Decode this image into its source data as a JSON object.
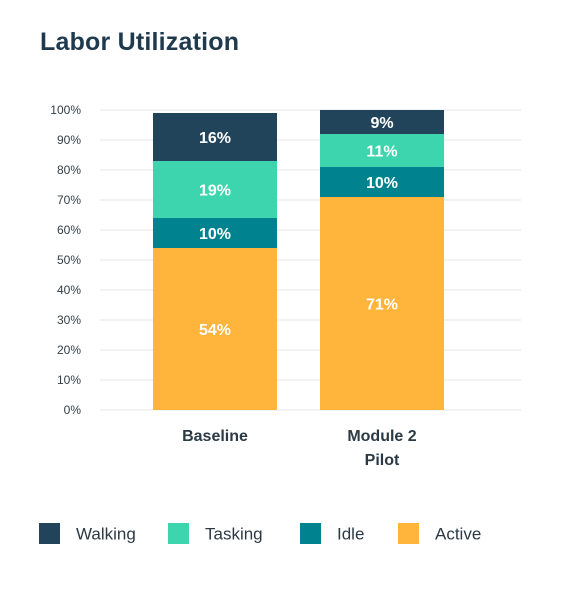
{
  "chart_data": {
    "type": "bar",
    "stacked": true,
    "title": "Labor Utilization",
    "categories": [
      [
        "Baseline"
      ],
      [
        "Module 2",
        "Pilot"
      ]
    ],
    "series": [
      {
        "name": "Active",
        "color": "#ffb43c",
        "values": [
          54,
          71
        ]
      },
      {
        "name": "Idle",
        "color": "#00838f",
        "values": [
          10,
          10
        ]
      },
      {
        "name": "Tasking",
        "color": "#3cd5ad",
        "values": [
          19,
          11
        ]
      },
      {
        "name": "Walking",
        "color": "#22445a",
        "values": [
          16,
          9
        ]
      }
    ],
    "ylim": [
      0,
      100
    ],
    "yticks": [
      "0%",
      "10%",
      "20%",
      "30%",
      "40%",
      "50%",
      "60%",
      "70%",
      "80%",
      "90%",
      "100%"
    ],
    "legend_position": "bottom",
    "legend_order": [
      "Walking",
      "Tasking",
      "Idle",
      "Active"
    ],
    "grid": true
  }
}
